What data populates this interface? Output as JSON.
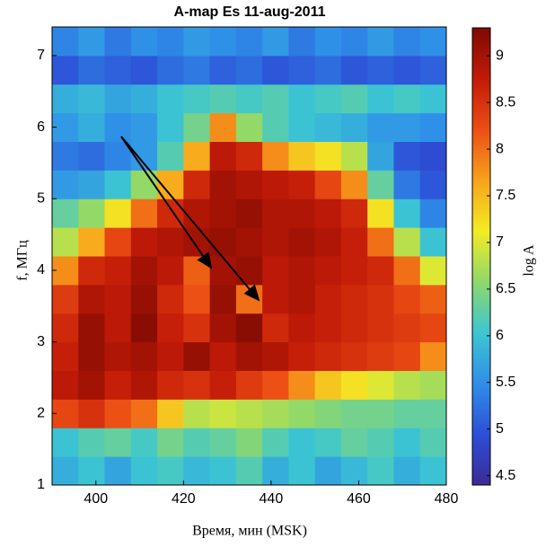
{
  "chart_data": {
    "type": "heatmap",
    "title": "A-map Es 11-aug-2011",
    "xlabel": "Время, мин (MSK)",
    "ylabel": "f, МГц",
    "colorbar_label": "log A",
    "x": [
      393,
      399,
      405,
      411,
      417,
      423,
      429,
      435,
      441,
      447,
      453,
      459,
      465,
      471,
      477
    ],
    "y": [
      1.2,
      1.6,
      2.0,
      2.4,
      2.8,
      3.2,
      3.6,
      4.0,
      4.4,
      4.8,
      5.2,
      5.6,
      6.0,
      6.4,
      6.8,
      7.2
    ],
    "values": [
      [
        5.8,
        6.0,
        5.7,
        6.0,
        6.1,
        5.9,
        6.0,
        6.2,
        5.8,
        6.0,
        5.7,
        5.9,
        6.1,
        5.8,
        6.0
      ],
      [
        6.0,
        6.2,
        6.3,
        6.1,
        6.4,
        6.2,
        6.3,
        6.5,
        6.2,
        6.0,
        6.1,
        6.3,
        6.2,
        6.0,
        6.2
      ],
      [
        8.3,
        8.5,
        8.2,
        8.0,
        7.4,
        6.8,
        6.9,
        6.8,
        6.7,
        6.6,
        6.5,
        6.4,
        6.4,
        6.3,
        6.3
      ],
      [
        8.8,
        9.0,
        8.7,
        8.9,
        8.6,
        8.5,
        8.7,
        8.4,
        8.2,
        7.8,
        7.4,
        7.2,
        7.0,
        6.8,
        6.7
      ],
      [
        8.7,
        9.1,
        8.9,
        9.0,
        8.8,
        9.1,
        8.8,
        9.0,
        8.9,
        8.7,
        8.6,
        8.5,
        8.4,
        8.3,
        7.8
      ],
      [
        8.6,
        9.1,
        8.8,
        9.2,
        8.7,
        8.5,
        9.0,
        9.2,
        8.6,
        8.8,
        8.7,
        8.6,
        8.5,
        8.4,
        8.3
      ],
      [
        8.4,
        8.9,
        8.8,
        9.1,
        8.6,
        8.2,
        9.1,
        8.0,
        8.8,
        8.9,
        8.7,
        8.6,
        8.5,
        8.3,
        8.1
      ],
      [
        7.8,
        8.6,
        8.7,
        9.0,
        8.8,
        8.1,
        9.0,
        9.1,
        8.8,
        8.9,
        8.8,
        8.7,
        8.6,
        8.0,
        7.0
      ],
      [
        6.8,
        7.6,
        8.3,
        8.8,
        8.9,
        9.0,
        9.1,
        9.0,
        8.9,
        9.0,
        8.9,
        8.7,
        8.0,
        6.8,
        6.0
      ],
      [
        6.3,
        6.6,
        7.2,
        8.0,
        8.6,
        8.9,
        9.0,
        9.1,
        8.9,
        8.9,
        8.8,
        8.6,
        7.2,
        6.0,
        5.4
      ],
      [
        5.6,
        5.7,
        6.0,
        6.6,
        7.6,
        8.6,
        9.0,
        8.9,
        8.8,
        8.7,
        8.3,
        7.8,
        6.3,
        5.3,
        5.0
      ],
      [
        5.3,
        5.2,
        5.4,
        5.6,
        6.2,
        7.6,
        8.8,
        8.6,
        7.8,
        7.4,
        7.2,
        6.8,
        5.7,
        5.0,
        4.9
      ],
      [
        5.6,
        5.8,
        5.5,
        5.6,
        6.0,
        6.4,
        7.8,
        6.6,
        6.2,
        6.0,
        5.9,
        5.8,
        5.6,
        5.6,
        5.5
      ],
      [
        5.8,
        5.9,
        5.7,
        5.8,
        6.0,
        6.1,
        6.2,
        6.1,
        6.2,
        6.0,
        6.1,
        6.2,
        6.0,
        6.1,
        6.0
      ],
      [
        5.0,
        5.2,
        5.1,
        5.0,
        5.2,
        5.3,
        5.1,
        5.2,
        5.0,
        5.1,
        5.2,
        5.0,
        5.1,
        5.0,
        5.1
      ],
      [
        5.4,
        5.6,
        5.3,
        5.5,
        5.4,
        5.6,
        5.5,
        5.4,
        5.6,
        5.3,
        5.5,
        5.4,
        5.6,
        5.4,
        5.5
      ]
    ],
    "xlim": [
      390,
      480
    ],
    "xticks": [
      400,
      420,
      440,
      460,
      480
    ],
    "ylim": [
      1,
      7.4
    ],
    "yticks": [
      1,
      2,
      3,
      4,
      5,
      6,
      7
    ],
    "clim": [
      4.4,
      9.3
    ],
    "cticks": [
      4.5,
      5,
      5.5,
      6,
      6.5,
      7,
      7.5,
      8,
      8.5,
      9
    ],
    "colormap": [
      "#3b2a98",
      "#2d4fd6",
      "#2f8fe8",
      "#3cc6d2",
      "#8fd86a",
      "#f3ec24",
      "#f7a21c",
      "#ec4e14",
      "#c21a08",
      "#7d0a02"
    ]
  }
}
